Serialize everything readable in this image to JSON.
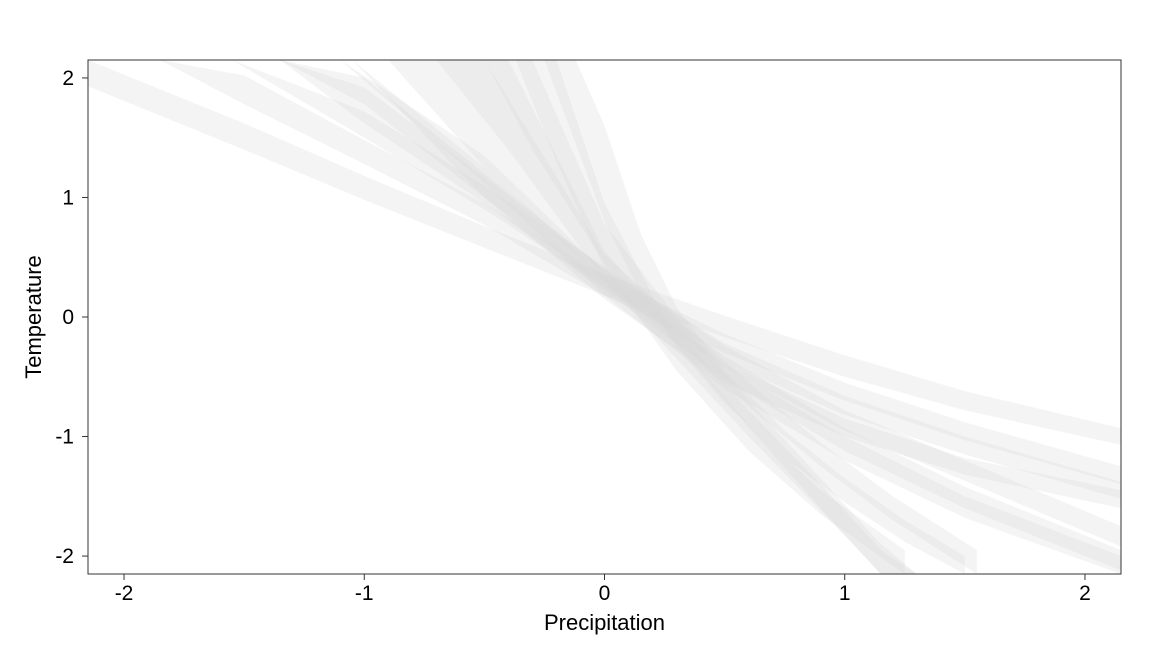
{
  "chart_data": {
    "type": "area",
    "xlabel": "Precipitation",
    "ylabel": "Temperature",
    "xlim": [
      -2.15,
      2.15
    ],
    "ylim": [
      -2.15,
      2.15
    ],
    "x_ticks": [
      -2,
      -1,
      0,
      1,
      2
    ],
    "y_ticks": [
      -2,
      -1,
      0,
      1,
      2
    ],
    "x_tick_labels": [
      "-2",
      "-1",
      "0",
      "1",
      "2"
    ],
    "y_tick_labels": [
      "-2",
      "-1",
      "0",
      "1",
      "2"
    ],
    "grid": false,
    "band_color": "#d9d9d9",
    "band_opacity": 0.28,
    "series": [
      {
        "x": [
          -2.15,
          -1.5,
          -1.0,
          -0.5,
          0.0,
          0.5,
          1.0,
          1.5,
          2.15
        ],
        "y_lower": [
          1.93,
          1.4,
          0.98,
          0.58,
          0.18,
          -0.17,
          -0.5,
          -0.78,
          -1.07
        ],
        "y_upper": [
          2.15,
          1.62,
          1.18,
          0.76,
          0.36,
          0.01,
          -0.32,
          -0.62,
          -0.93
        ]
      },
      {
        "x": [
          -1.85,
          -1.5,
          -1.0,
          -0.5,
          0.0,
          0.5,
          1.0,
          1.5,
          2.15
        ],
        "y_lower": [
          2.15,
          1.78,
          1.28,
          0.77,
          0.18,
          -0.3,
          -0.7,
          -1.03,
          -1.4
        ],
        "y_upper": [
          2.15,
          2.02,
          1.48,
          0.95,
          0.34,
          -0.14,
          -0.55,
          -0.88,
          -1.25
        ]
      },
      {
        "x": [
          -1.55,
          -1.0,
          -0.5,
          0.0,
          0.5,
          1.0,
          1.5,
          2.15
        ],
        "y_lower": [
          2.15,
          1.5,
          0.9,
          0.24,
          -0.42,
          -0.95,
          -1.37,
          -1.92
        ],
        "y_upper": [
          2.15,
          1.72,
          1.1,
          0.42,
          -0.24,
          -0.78,
          -1.2,
          -1.75
        ]
      },
      {
        "x": [
          -1.35,
          -1.0,
          -0.5,
          0.0,
          0.5,
          1.0,
          1.5,
          2.15
        ],
        "y_lower": [
          2.15,
          1.62,
          0.95,
          0.22,
          -0.52,
          -1.12,
          -1.6,
          -2.12
        ],
        "y_upper": [
          2.15,
          1.92,
          1.17,
          0.4,
          -0.33,
          -0.93,
          -1.42,
          -1.95
        ]
      },
      {
        "x": [
          -1.35,
          -1.0,
          -0.5,
          0.0,
          0.5,
          1.0,
          1.5,
          2.15
        ],
        "y_lower": [
          2.15,
          1.78,
          1.0,
          0.25,
          -0.38,
          -0.82,
          -1.15,
          -1.52
        ],
        "y_upper": [
          2.15,
          2.0,
          1.2,
          0.4,
          -0.22,
          -0.66,
          -1.0,
          -1.38
        ]
      },
      {
        "x": [
          -1.1,
          -0.5,
          0.0,
          0.5,
          1.0,
          1.5,
          2.15
        ],
        "y_lower": [
          2.15,
          1.12,
          0.18,
          -0.6,
          -1.2,
          -1.68,
          -2.15
        ],
        "y_upper": [
          2.15,
          1.35,
          0.38,
          -0.4,
          -1.0,
          -1.5,
          -2.0
        ]
      },
      {
        "x": [
          -1.05,
          -0.5,
          0.0,
          0.5,
          1.0,
          1.5,
          2.15
        ],
        "y_lower": [
          2.15,
          1.0,
          0.15,
          -0.55,
          -1.0,
          -1.32,
          -1.6
        ],
        "y_upper": [
          2.15,
          1.25,
          0.32,
          -0.38,
          -0.85,
          -1.18,
          -1.45
        ]
      },
      {
        "x": [
          -0.9,
          -0.5,
          0.0,
          0.3,
          0.6,
          0.9,
          1.15,
          1.3
        ],
        "y_lower": [
          2.15,
          1.25,
          0.3,
          -0.22,
          -0.92,
          -1.6,
          -2.15,
          -2.15
        ],
        "y_upper": [
          2.15,
          2.15,
          0.52,
          -0.02,
          -0.7,
          -1.35,
          -1.9,
          -2.15
        ]
      },
      {
        "x": [
          -0.7,
          -0.4,
          0.0,
          0.3,
          0.6,
          0.9,
          1.15,
          1.3
        ],
        "y_lower": [
          2.15,
          1.4,
          0.3,
          -0.35,
          -1.0,
          -1.62,
          -2.15,
          -2.15
        ],
        "y_upper": [
          2.15,
          2.15,
          0.55,
          -0.12,
          -0.78,
          -1.4,
          -1.95,
          -2.15
        ]
      },
      {
        "x": [
          -0.5,
          -0.3,
          0.0,
          0.3,
          0.6,
          0.9,
          1.2,
          1.55
        ],
        "y_lower": [
          2.15,
          1.4,
          0.45,
          -0.2,
          -0.75,
          -1.25,
          -1.7,
          -2.15
        ],
        "y_upper": [
          2.15,
          2.15,
          0.78,
          0.0,
          -0.55,
          -1.05,
          -1.5,
          -1.95
        ]
      },
      {
        "x": [
          -0.37,
          -0.2,
          0.0,
          0.3,
          0.6,
          0.9,
          1.25
        ],
        "y_lower": [
          2.15,
          1.3,
          0.4,
          -0.45,
          -1.12,
          -1.65,
          -2.15
        ],
        "y_upper": [
          2.15,
          2.15,
          0.95,
          -0.2,
          -0.9,
          -1.45,
          -1.95
        ]
      },
      {
        "x": [
          -0.25,
          -0.12,
          0.0,
          0.15,
          0.3,
          0.5,
          0.75,
          1.0,
          1.25,
          1.5
        ],
        "y_lower": [
          2.15,
          1.45,
          0.8,
          0.2,
          -0.25,
          -0.72,
          -1.18,
          -1.55,
          -1.88,
          -2.15
        ],
        "y_upper": [
          2.15,
          2.15,
          1.6,
          0.7,
          0.08,
          -0.45,
          -0.95,
          -1.35,
          -1.7,
          -2.0
        ]
      }
    ]
  }
}
